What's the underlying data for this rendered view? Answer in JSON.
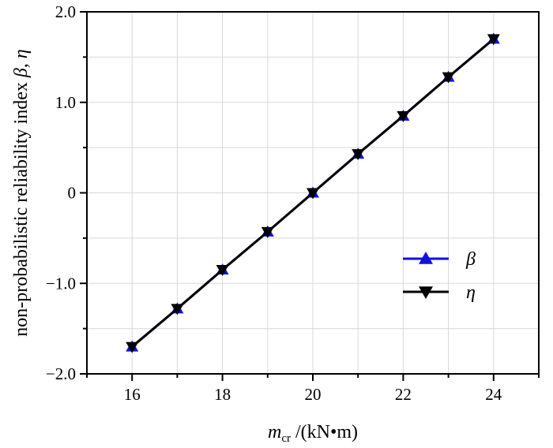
{
  "chart_data": {
    "type": "line",
    "xlabel": {
      "main": "m",
      "sub": "cr",
      "rest": " /(kN•m)"
    },
    "ylabel": {
      "text": "non-probabilistic reliability index  ",
      "greek": "β, η"
    },
    "xlim": [
      15,
      25
    ],
    "ylim": [
      -2.0,
      2.0
    ],
    "x_ticks": [
      16,
      18,
      20,
      22,
      24
    ],
    "x_tick_labels": [
      "16",
      "18",
      "20",
      "22",
      "24"
    ],
    "y_ticks": [
      -2.0,
      -1.0,
      0,
      1.0,
      2.0
    ],
    "y_tick_labels": [
      "−2.0",
      "−1.0",
      "0",
      "1.0",
      "2.0"
    ],
    "grid": true,
    "legend_position": "right",
    "x": [
      16,
      17,
      18,
      19,
      20,
      21,
      22,
      23,
      24
    ],
    "series": [
      {
        "name": "β",
        "marker": "triangle-up",
        "color": "#1010e0",
        "values": [
          -1.7,
          -1.28,
          -0.85,
          -0.43,
          0.0,
          0.43,
          0.85,
          1.28,
          1.7
        ]
      },
      {
        "name": "η",
        "marker": "triangle-down",
        "color": "#000000",
        "values": [
          -1.7,
          -1.28,
          -0.85,
          -0.43,
          0.0,
          0.43,
          0.85,
          1.28,
          1.7
        ]
      }
    ]
  }
}
